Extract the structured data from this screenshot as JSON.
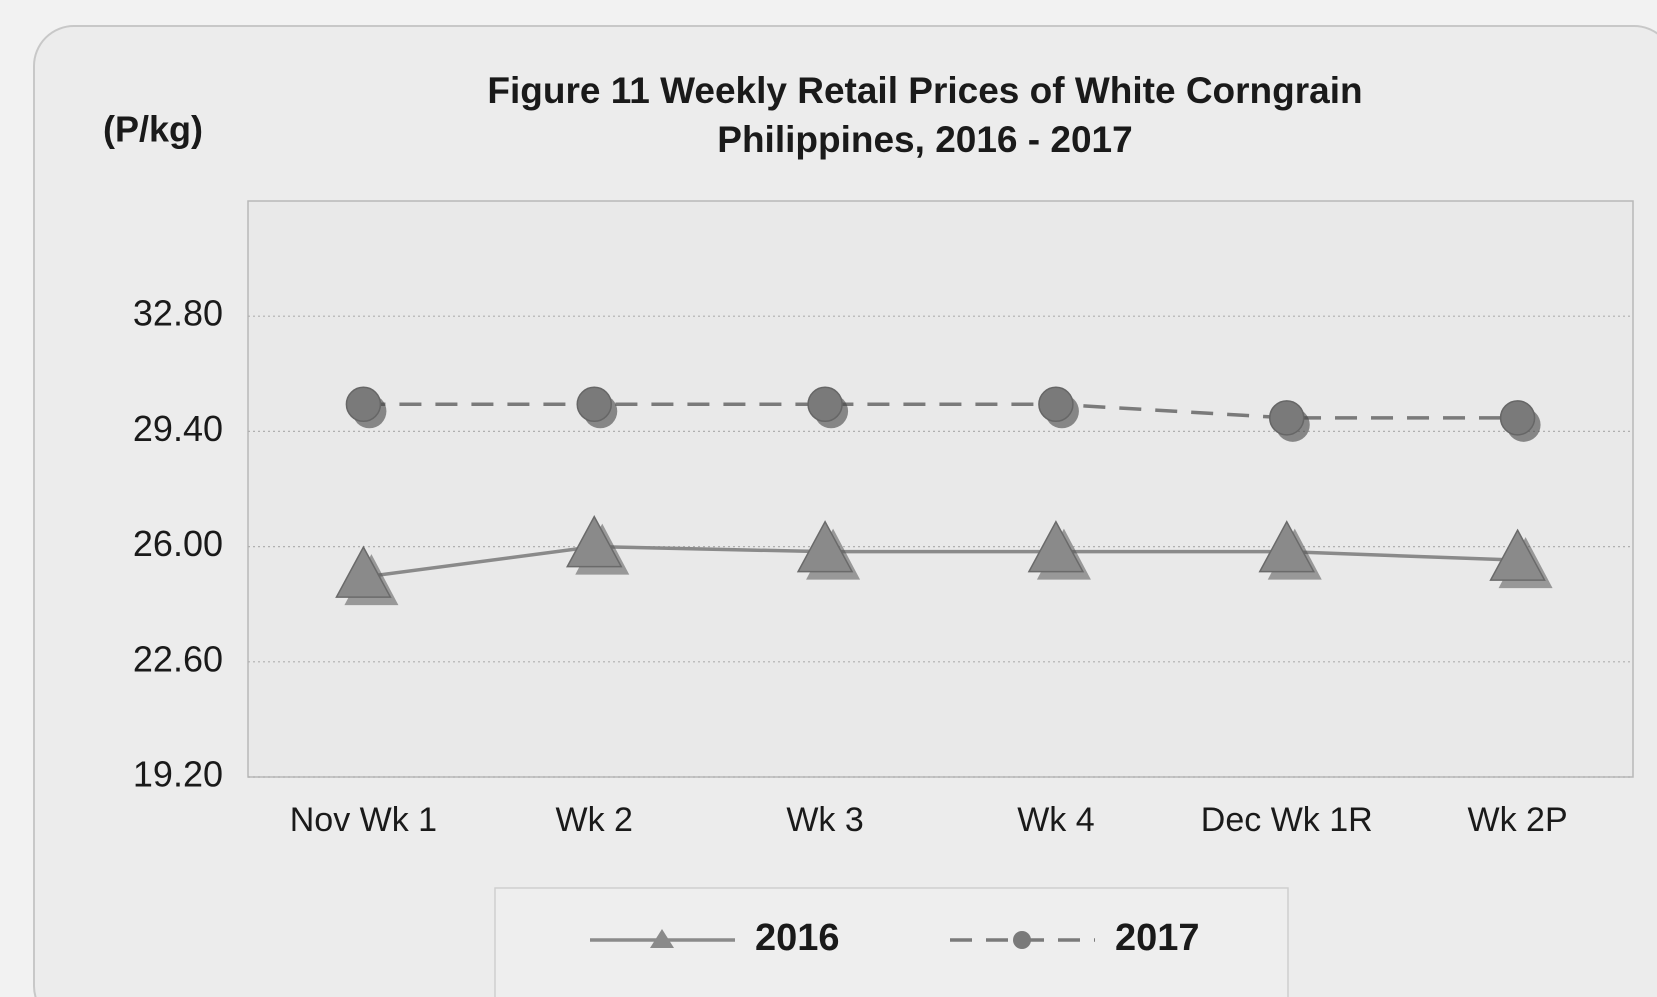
{
  "chart_data": {
    "type": "line",
    "title": "Figure 11  Weekly Retail Prices of White Corngrain",
    "subtitle": "Philippines, 2016 - 2017",
    "y_label": "(P/kg)",
    "categories": [
      "Nov Wk 1",
      "Wk 2",
      "Wk 3",
      "Wk 4",
      "Dec Wk 1R",
      "Wk 2P"
    ],
    "series": [
      {
        "name": "2016",
        "color": "#8a8a8a",
        "marker": "triangle",
        "dash": false,
        "values": [
          25.1,
          26.0,
          25.85,
          25.85,
          25.85,
          25.6
        ]
      },
      {
        "name": "2017",
        "color": "#7a7a7a",
        "marker": "circle",
        "dash": true,
        "values": [
          30.2,
          30.2,
          30.2,
          30.2,
          29.8,
          29.8
        ]
      }
    ],
    "ylim": [
      19.2,
      36.2
    ],
    "yticks": [
      {
        "value": 19.2,
        "label": "19.20"
      },
      {
        "value": 22.6,
        "label": "22.60"
      },
      {
        "value": 26.0,
        "label": "26.00"
      },
      {
        "value": 29.4,
        "label": "29.40"
      },
      {
        "value": 32.8,
        "label": "32.80"
      }
    ],
    "grid": true,
    "legend": "bottom"
  }
}
